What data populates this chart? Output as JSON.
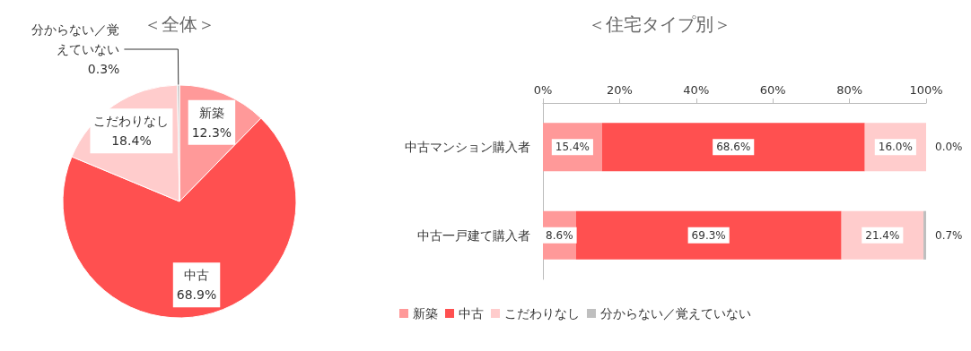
{
  "chart_data": [
    {
      "type": "pie",
      "title": "＜全体＞",
      "categories": [
        "新築",
        "中古",
        "こだわりなし",
        "分からない／覚えていない"
      ],
      "values": [
        12.3,
        68.9,
        18.4,
        0.3
      ],
      "colors": [
        "#ff9999",
        "#ff5050",
        "#ffcccc",
        "#bfbfbf"
      ],
      "value_labels": [
        "12.3%",
        "68.9%",
        "18.4%",
        "0.3%"
      ],
      "legend": false
    },
    {
      "type": "bar",
      "orientation": "horizontal",
      "stacked": true,
      "title": "＜住宅タイプ別＞",
      "categories": [
        "中古マンション購入者",
        "中古一戸建て購入者"
      ],
      "xlim": [
        0,
        100
      ],
      "xticks": [
        {
          "value": 0,
          "label": "0%"
        },
        {
          "value": 20,
          "label": "20%"
        },
        {
          "value": 40,
          "label": "40%"
        },
        {
          "value": 60,
          "label": "60%"
        },
        {
          "value": 80,
          "label": "80%"
        },
        {
          "value": 100,
          "label": "100%"
        }
      ],
      "legend": "bottom",
      "grid": false,
      "series": [
        {
          "name": "新築",
          "color": "#ff9999",
          "values": [
            15.4,
            8.6
          ],
          "value_labels": [
            "15.4%",
            "8.6%"
          ]
        },
        {
          "name": "中古",
          "color": "#ff5050",
          "values": [
            68.6,
            69.3
          ],
          "value_labels": [
            "68.6%",
            "69.3%"
          ]
        },
        {
          "name": "こだわりなし",
          "color": "#ffcccc",
          "values": [
            16.0,
            21.4
          ],
          "value_labels": [
            "16.0%",
            "21.4%"
          ]
        },
        {
          "name": "分からない／覚えていない",
          "color": "#bfbfbf",
          "values": [
            0.0,
            0.7
          ],
          "value_labels": [
            "0.0%",
            "0.7%"
          ]
        }
      ]
    }
  ]
}
